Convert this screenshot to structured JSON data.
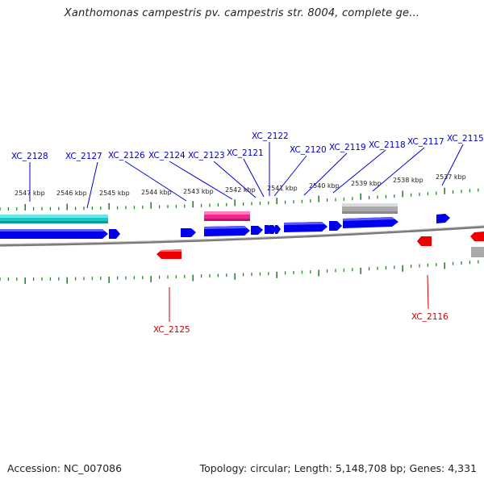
{
  "title": "Xanthomonas campestris pv. campestris str. 8004, complete ge...",
  "footer": {
    "accession": "Accession: NC_007086",
    "summary": "Topology: circular; Length: 5,148,708 bp; Genes: 4,331"
  },
  "colors": {
    "forward_gene": "#0000ee",
    "reverse_gene": "#ee0000",
    "rna": "#18c8c8",
    "other": "#ee2a90",
    "pseudo": "#aaaaaa",
    "backbone": "#888888",
    "ticks": "#228822",
    "label_top": "#0000cc",
    "label_bottom": "#cc0000"
  },
  "scale_labels": [
    "2547 kbp",
    "2546 kbp",
    "2545 kbp",
    "2544 kbp",
    "2543 kbp",
    "2542 kbp",
    "2541 kbp",
    "2540 kbp",
    "2539 kbp",
    "2538 kbp",
    "2537 kbp"
  ],
  "top_labels": [
    "XC_2128",
    "XC_2127",
    "XC_2126",
    "XC_2124",
    "XC_2123",
    "XC_2121",
    "XC_2122",
    "XC_2120",
    "XC_2119",
    "XC_2118",
    "XC_2117",
    "XC_2115"
  ],
  "bottom_labels": [
    "XC_2125",
    "XC_2116"
  ]
}
